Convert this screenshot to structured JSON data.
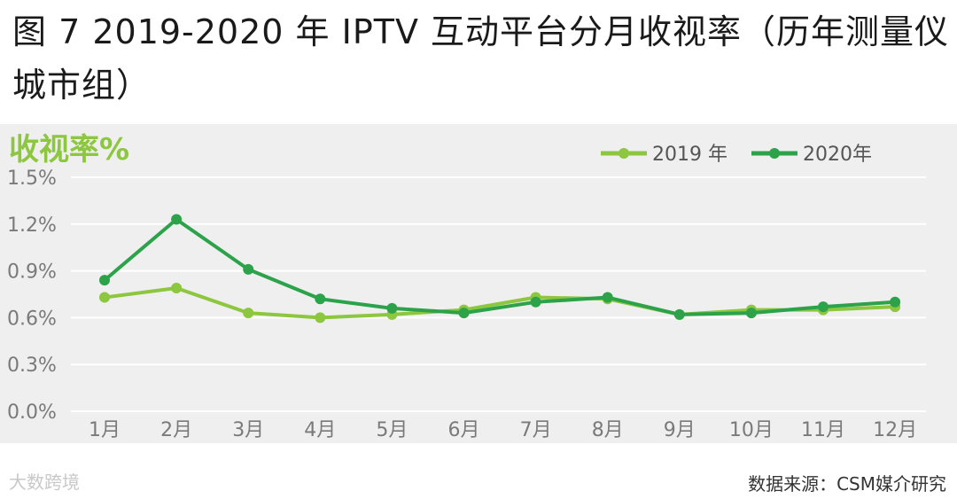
{
  "figure": {
    "title": "图 7 2019-2020 年 IPTV 互动平台分月收视率（历年测量仪城市组）",
    "source": "数据来源：CSM媒介研究",
    "watermark": "大数跨境"
  },
  "chart_data": {
    "type": "line",
    "ylabel": "收视率%",
    "categories": [
      "1月",
      "2月",
      "3月",
      "4月",
      "5月",
      "6月",
      "7月",
      "8月",
      "9月",
      "10月",
      "11月",
      "12月"
    ],
    "y_ticks": [
      "0.0%",
      "0.3%",
      "0.6%",
      "0.9%",
      "1.2%",
      "1.5%"
    ],
    "ylim": [
      0,
      1.5
    ],
    "grid": true,
    "legend_position": "top-right",
    "series": [
      {
        "name": "2019 年",
        "color": "#8dc63f",
        "values": [
          0.73,
          0.79,
          0.63,
          0.6,
          0.62,
          0.65,
          0.73,
          0.72,
          0.62,
          0.65,
          0.65,
          0.67
        ]
      },
      {
        "name": "2020年",
        "color": "#2ca34a",
        "values": [
          0.84,
          1.23,
          0.91,
          0.72,
          0.66,
          0.63,
          0.7,
          0.73,
          0.62,
          0.63,
          0.67,
          0.7
        ]
      }
    ]
  }
}
